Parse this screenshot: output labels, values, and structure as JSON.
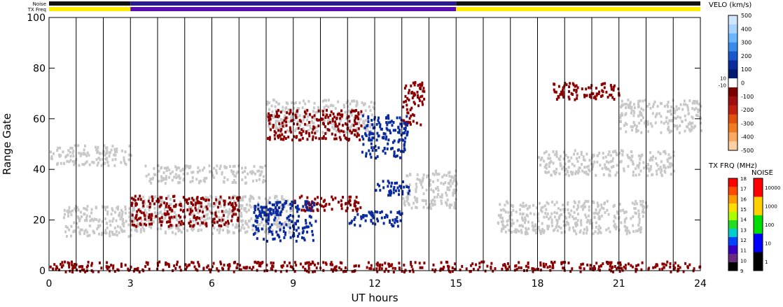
{
  "chart_data": {
    "type": "heatmap",
    "xlabel": "UT hours",
    "ylabel": "Range Gate",
    "xlim": [
      0,
      24
    ],
    "ylim": [
      0,
      100
    ],
    "x_ticks": [
      "0",
      "3",
      "6",
      "9",
      "12",
      "15",
      "18",
      "21",
      "24"
    ],
    "y_ticks": [
      "0",
      "20",
      "40",
      "60",
      "80",
      "100"
    ],
    "beam_sweep_lines_hours": [
      1,
      2,
      3,
      4,
      5,
      6,
      7,
      8,
      9,
      10,
      11,
      12,
      13,
      14,
      15,
      16,
      17,
      18,
      19,
      20,
      21,
      22,
      23
    ],
    "top_bars": [
      {
        "label": "Noise",
        "segments": [
          {
            "start": 0,
            "end": 3,
            "color": "#111111"
          },
          {
            "start": 3,
            "end": 15,
            "color": "#2a1a8a"
          },
          {
            "start": 15,
            "end": 24,
            "color": "#111111"
          }
        ]
      },
      {
        "label": "TX Freq",
        "segments": [
          {
            "start": 0,
            "end": 3,
            "color": "#ffee00"
          },
          {
            "start": 3,
            "end": 15,
            "color": "#5a10b0"
          },
          {
            "start": 15,
            "end": 24,
            "color": "#ffee00"
          }
        ]
      }
    ],
    "velocity_colorbar": {
      "title": "VELO (km/s)",
      "range": [
        -500,
        500
      ],
      "tick_labels": [
        "500",
        "400",
        "300",
        "200",
        "100",
        "0",
        "-100",
        "-200",
        "-300",
        "-400",
        "-500"
      ],
      "inner_labels": [
        "10",
        "-10"
      ],
      "colors": [
        "#cfe6ff",
        "#a8d4ff",
        "#6cb6ff",
        "#3a8ae8",
        "#1a56cc",
        "#0a2aa0",
        "#001a70",
        "#ffffff",
        "#7a0000",
        "#a01010",
        "#c02010",
        "#e05010",
        "#f07a20",
        "#f8a860",
        "#fcd0a0"
      ]
    },
    "txfreq_colorbar": {
      "title": "TX FRQ (MHz)",
      "tick_labels": [
        "18",
        "17",
        "16",
        "15",
        "14",
        "13",
        "12",
        "11",
        "10",
        "9"
      ],
      "colors": [
        "#ff0000",
        "#ff4a00",
        "#ff9a00",
        "#ffdd00",
        "#aaff00",
        "#22dd22",
        "#00cccc",
        "#0044ff",
        "#3a00c0",
        "#6a2a80",
        "#000000"
      ]
    },
    "noise_colorbar": {
      "title": "NOISE",
      "tick_labels": [
        "10000",
        "1000",
        "100",
        "10",
        "1"
      ],
      "colors": [
        "#ff0000",
        "#ffd000",
        "#00dd00",
        "#0000ff",
        "#000000"
      ]
    },
    "series": [
      {
        "category": "ground scatter",
        "color": "#c8c8c8",
        "bands": [
          {
            "t0": 0,
            "t1": 3,
            "g0": 42,
            "g1": 50
          },
          {
            "t0": 0.5,
            "t1": 3.2,
            "g0": 14,
            "g1": 26
          },
          {
            "t0": 3,
            "t1": 9,
            "g0": 15,
            "g1": 30
          },
          {
            "t0": 3.5,
            "t1": 8,
            "g0": 35,
            "g1": 42
          },
          {
            "t0": 8,
            "t1": 12,
            "g0": 55,
            "g1": 68
          },
          {
            "t0": 13,
            "t1": 15,
            "g0": 25,
            "g1": 40
          },
          {
            "t0": 16.5,
            "t1": 22,
            "g0": 15,
            "g1": 28
          },
          {
            "t0": 18,
            "t1": 23,
            "g0": 38,
            "g1": 48
          },
          {
            "t0": 21,
            "t1": 24,
            "g0": 55,
            "g1": 68
          }
        ]
      },
      {
        "category": "negative velocity",
        "color": "#8b0000",
        "bands": [
          {
            "t0": 0,
            "t1": 24,
            "g0": 0,
            "g1": 4
          },
          {
            "t0": 3,
            "t1": 7,
            "g0": 18,
            "g1": 30
          },
          {
            "t0": 9,
            "t1": 11.5,
            "g0": 24,
            "g1": 30
          },
          {
            "t0": 8,
            "t1": 11.5,
            "g0": 52,
            "g1": 64
          },
          {
            "t0": 13,
            "t1": 13.8,
            "g0": 58,
            "g1": 75
          },
          {
            "t0": 18.5,
            "t1": 21,
            "g0": 68,
            "g1": 75
          }
        ]
      },
      {
        "category": "positive velocity",
        "color": "#0a2aa0",
        "bands": [
          {
            "t0": 7.5,
            "t1": 9.8,
            "g0": 12,
            "g1": 28
          },
          {
            "t0": 11,
            "t1": 13,
            "g0": 18,
            "g1": 24
          },
          {
            "t0": 11.5,
            "t1": 13.2,
            "g0": 45,
            "g1": 62
          },
          {
            "t0": 12,
            "t1": 13.3,
            "g0": 30,
            "g1": 36
          }
        ]
      }
    ]
  }
}
